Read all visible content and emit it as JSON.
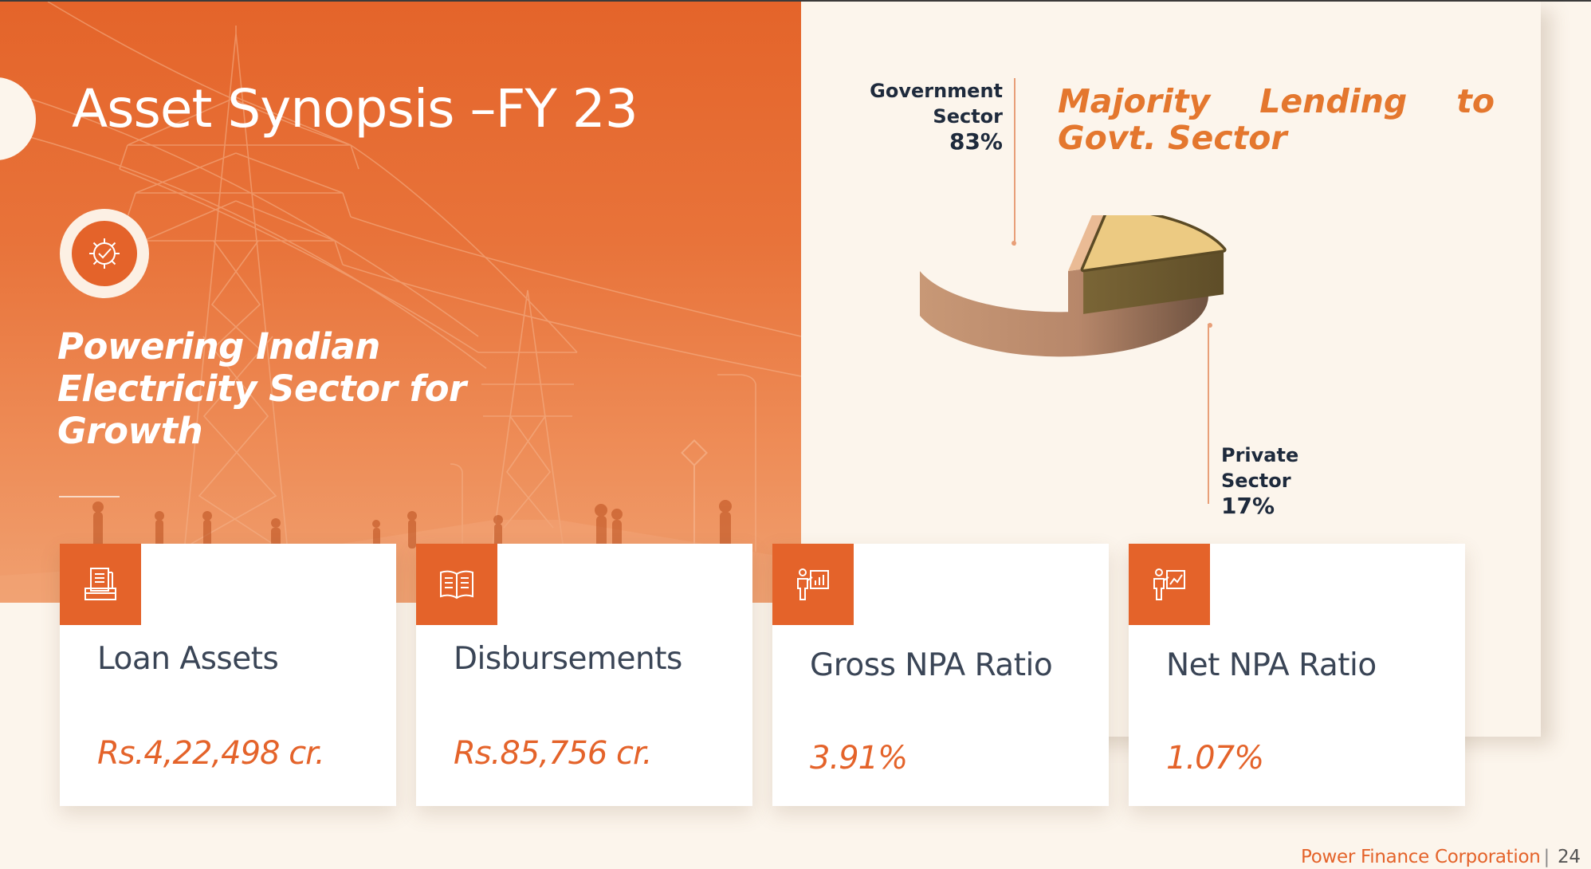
{
  "slide": {
    "title": "Asset Synopsis –FY 23",
    "tagline": "Powering Indian Electricity Sector for Growth",
    "headline": "Majority Lending to Govt. Sector"
  },
  "chart_data": {
    "type": "pie",
    "title": "",
    "slices": [
      {
        "label": "Government Sector",
        "value": 83,
        "display": "83%",
        "color": "#eabb95"
      },
      {
        "label": "Private Sector",
        "value": 17,
        "display": "17%",
        "color": "#ecca82"
      }
    ],
    "exploded": "Private Sector",
    "style": "3d"
  },
  "pie_labels": {
    "government": {
      "line1": "Government",
      "line2": "Sector",
      "pct": "83%"
    },
    "private": {
      "line1": "Private",
      "line2": "Sector",
      "pct": "17%"
    }
  },
  "cards": [
    {
      "label": "Loan Assets",
      "value": "Rs.4,22,498 cr.",
      "icon": "documents-icon"
    },
    {
      "label": "Disbursements",
      "value": "Rs.85,756 cr.",
      "icon": "open-book-icon"
    },
    {
      "label": "Gross NPA Ratio",
      "value": "3.91%",
      "icon": "presenter-chart-icon"
    },
    {
      "label": "Net NPA Ratio",
      "value": "1.07%",
      "icon": "presenter-trend-icon"
    }
  ],
  "footer": {
    "company": "Power Finance Corporation",
    "page_number": "24"
  },
  "colors": {
    "accent": "#e4632a",
    "headline": "#e4772e",
    "background": "#fcf5ec",
    "text_dark": "#1e2a3c"
  }
}
